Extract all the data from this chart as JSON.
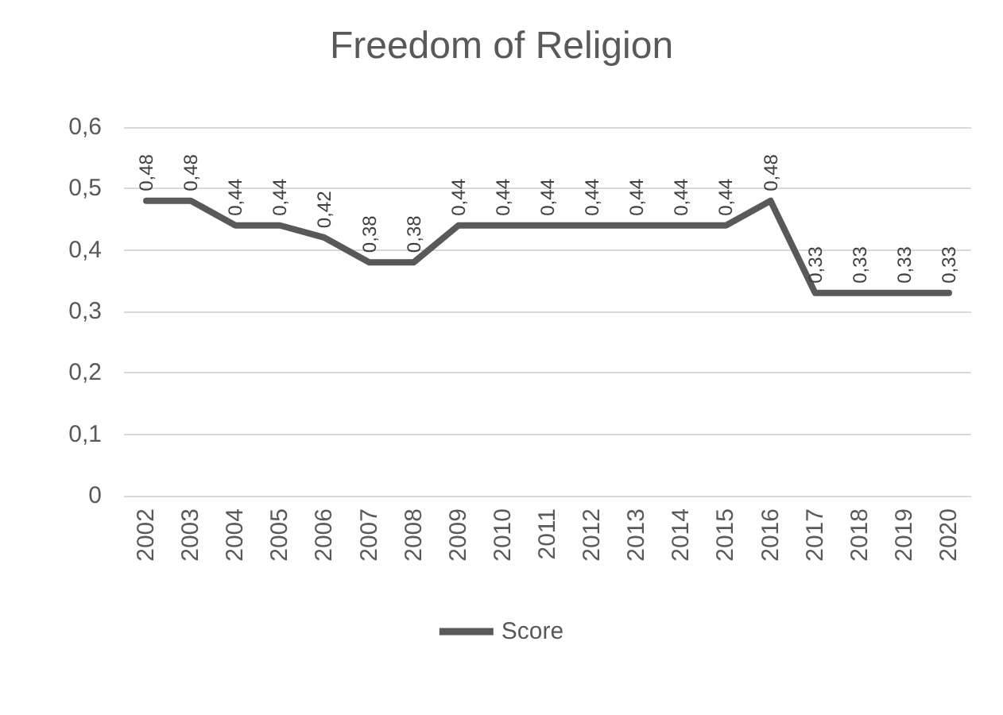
{
  "chart_data": {
    "type": "line",
    "title": "Freedom of Religion",
    "categories": [
      "2002",
      "2003",
      "2004",
      "2005",
      "2006",
      "2007",
      "2008",
      "2009",
      "2010",
      "2011",
      "2012",
      "2013",
      "2014",
      "2015",
      "2016",
      "2017",
      "2018",
      "2019",
      "2020"
    ],
    "series": [
      {
        "name": "Score",
        "color": "#595959",
        "values": [
          0.48,
          0.48,
          0.44,
          0.44,
          0.42,
          0.38,
          0.38,
          0.44,
          0.44,
          0.44,
          0.44,
          0.44,
          0.44,
          0.44,
          0.48,
          0.33,
          0.33,
          0.33,
          0.33
        ],
        "value_labels": [
          "0,48",
          "0,48",
          "0,44",
          "0,44",
          "0,42",
          "0,38",
          "0,38",
          "0,44",
          "0,44",
          "0,44",
          "0,44",
          "0,44",
          "0,44",
          "0,44",
          "0,48",
          "0,33",
          "0,33",
          "0,33",
          "0,33"
        ]
      }
    ],
    "ylim": [
      0,
      0.6
    ],
    "yticks": [
      {
        "value": 0,
        "label": "0"
      },
      {
        "value": 0.1,
        "label": "0,1"
      },
      {
        "value": 0.2,
        "label": "0,2"
      },
      {
        "value": 0.3,
        "label": "0,3"
      },
      {
        "value": 0.4,
        "label": "0,4"
      },
      {
        "value": 0.5,
        "label": "0,5"
      },
      {
        "value": 0.6,
        "label": "0,6"
      }
    ],
    "grid": "y",
    "legend": "bottom",
    "marker": "none",
    "line_style": "solid"
  }
}
